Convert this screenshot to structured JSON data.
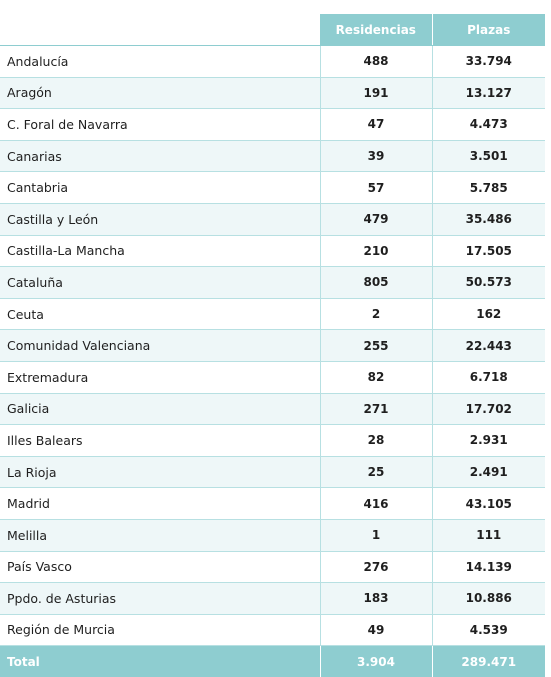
{
  "table": {
    "headers": {
      "region": "",
      "residencias": "Residencias",
      "plazas": "Plazas"
    },
    "rows": [
      {
        "region": "Andalucía",
        "residencias": "488",
        "plazas": "33.794"
      },
      {
        "region": "Aragón",
        "residencias": "191",
        "plazas": "13.127"
      },
      {
        "region": "C. Foral de Navarra",
        "residencias": "47",
        "plazas": "4.473"
      },
      {
        "region": "Canarias",
        "residencias": "39",
        "plazas": "3.501"
      },
      {
        "region": "Cantabria",
        "residencias": "57",
        "plazas": "5.785"
      },
      {
        "region": "Castilla y León",
        "residencias": "479",
        "plazas": "35.486"
      },
      {
        "region": "Castilla-La Mancha",
        "residencias": "210",
        "plazas": "17.505"
      },
      {
        "region": "Cataluña",
        "residencias": "805",
        "plazas": "50.573"
      },
      {
        "region": "Ceuta",
        "residencias": "2",
        "plazas": "162"
      },
      {
        "region": "Comunidad Valenciana",
        "residencias": "255",
        "plazas": "22.443"
      },
      {
        "region": "Extremadura",
        "residencias": "82",
        "plazas": "6.718"
      },
      {
        "region": "Galicia",
        "residencias": "271",
        "plazas": "17.702"
      },
      {
        "region": "Illes Balears",
        "residencias": "28",
        "plazas": "2.931"
      },
      {
        "region": "La Rioja",
        "residencias": "25",
        "plazas": "2.491"
      },
      {
        "region": "Madrid",
        "residencias": "416",
        "plazas": "43.105"
      },
      {
        "region": "Melilla",
        "residencias": "1",
        "plazas": "111"
      },
      {
        "region": "País Vasco",
        "residencias": "276",
        "plazas": "14.139"
      },
      {
        "region": "Ppdo. de Asturias",
        "residencias": "183",
        "plazas": "10.886"
      },
      {
        "region": "Región de Murcia",
        "residencias": "49",
        "plazas": "4.539"
      }
    ],
    "total": {
      "region": "Total",
      "residencias": "3.904",
      "plazas": "289.471"
    }
  },
  "colors": {
    "header_teal": "#8ecdd0",
    "row_alt": "#eef7f8",
    "row_border": "#b7e0e2"
  }
}
